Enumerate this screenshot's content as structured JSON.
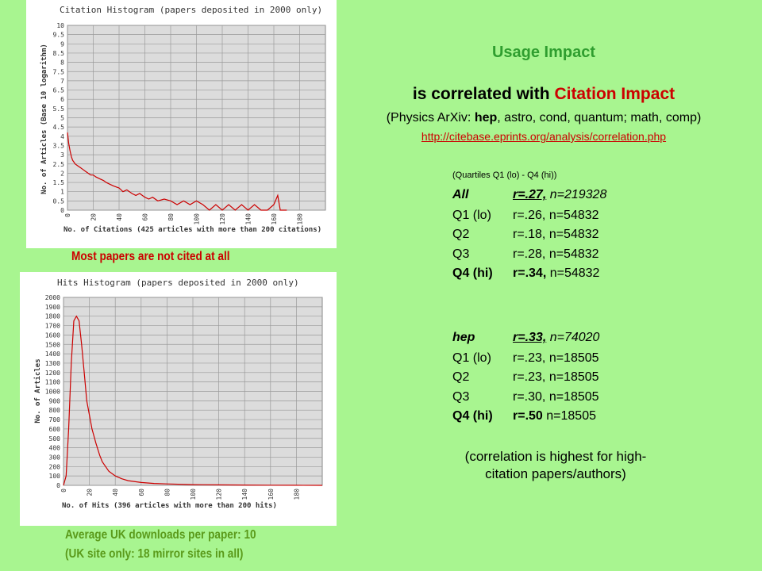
{
  "chart_data": [
    {
      "type": "line",
      "title": "Citation Histogram (papers deposited in 2000 only)",
      "x_label": "No. of Citations (425 articles with more than 200 citations)",
      "y_label": "No. of Articles (Base 10 logarithm)",
      "x": [
        0,
        1,
        2,
        3,
        4,
        5,
        6,
        8,
        10,
        12,
        14,
        16,
        18,
        20,
        22,
        25,
        28,
        30,
        33,
        36,
        40,
        43,
        46,
        50,
        53,
        56,
        60,
        63,
        66,
        70,
        75,
        80,
        85,
        90,
        95,
        100,
        105,
        110,
        115,
        120,
        125,
        130,
        135,
        140,
        145,
        150,
        155,
        160,
        163,
        165,
        170
      ],
      "values": [
        4.2,
        3.6,
        3.2,
        2.9,
        2.7,
        2.6,
        2.5,
        2.4,
        2.3,
        2.2,
        2.1,
        2.0,
        1.9,
        1.9,
        1.8,
        1.7,
        1.6,
        1.5,
        1.4,
        1.3,
        1.2,
        1.0,
        1.1,
        0.9,
        0.8,
        0.9,
        0.7,
        0.6,
        0.7,
        0.5,
        0.6,
        0.5,
        0.3,
        0.5,
        0.3,
        0.5,
        0.3,
        0,
        0.3,
        0,
        0.3,
        0,
        0.3,
        0,
        0.3,
        0,
        0,
        0.3,
        0.8,
        0,
        0
      ],
      "color": "#cc0000",
      "xlim": [
        0,
        200
      ],
      "xticks": [
        0,
        20,
        40,
        60,
        80,
        100,
        120,
        140,
        160,
        180
      ],
      "ylim": [
        0,
        10
      ],
      "yticks": [
        0,
        0.5,
        1,
        1.5,
        2,
        2.5,
        3,
        3.5,
        4,
        4.5,
        5,
        5.5,
        6,
        6.5,
        7,
        7.5,
        8,
        8.5,
        9,
        9.5,
        10
      ],
      "grid": true
    },
    {
      "type": "line",
      "title": "Hits Histogram (papers deposited in 2000 only)",
      "x_label": "No. of Hits (396 articles with more than 200 hits)",
      "y_label": "No. of Articles",
      "x": [
        0,
        2,
        4,
        6,
        8,
        10,
        12,
        14,
        16,
        18,
        20,
        22,
        25,
        28,
        30,
        35,
        40,
        45,
        50,
        60,
        70,
        80,
        100,
        120,
        140,
        160,
        180,
        200
      ],
      "values": [
        0,
        100,
        600,
        1300,
        1750,
        1800,
        1750,
        1500,
        1200,
        900,
        750,
        600,
        450,
        320,
        250,
        150,
        100,
        70,
        50,
        30,
        20,
        15,
        8,
        5,
        3,
        2,
        1,
        0
      ],
      "color": "#cc0000",
      "xlim": [
        0,
        200
      ],
      "xticks": [
        0,
        20,
        40,
        60,
        80,
        100,
        120,
        140,
        160,
        180
      ],
      "ylim": [
        0,
        2000
      ],
      "yticks": [
        0,
        100,
        200,
        300,
        400,
        500,
        600,
        700,
        800,
        900,
        1000,
        1100,
        1200,
        1300,
        1400,
        1500,
        1600,
        1700,
        1800,
        1900,
        2000
      ],
      "grid": true
    }
  ],
  "captions": {
    "citations": "Most papers are not cited at all",
    "hits": [
      "Average UK downloads per paper: 10",
      "(UK site only: 18 mirror sites in all)"
    ]
  },
  "heading": {
    "title": "Usage Impact",
    "subtitle_prefix": "is correlated with",
    "subtitle_highlight": "Citation Impact"
  },
  "source": {
    "open": "(Physics ArXiv:",
    "bold": "hep",
    "rest": ", astro, cond, quantum; math, comp)",
    "url": "http://citebase.eprints.org/analysis/correlation.php"
  },
  "quartiles_note": "(Quartiles Q1 (lo) - Q4 (hi))",
  "groups": [
    {
      "label": "All",
      "r": "r=.27,",
      "n": "n=219328",
      "rows": [
        {
          "label": "Q1 (lo)",
          "r": "r=.26,",
          "n": "n=54832"
        },
        {
          "label": "Q2",
          "r": "r=.18,",
          "n": "n=54832"
        },
        {
          "label": "Q3",
          "r": "r=.28,",
          "n": "n=54832"
        },
        {
          "label": "Q4 (hi)",
          "r": "r=.34,",
          "n": "n=54832"
        }
      ]
    },
    {
      "label": "hep",
      "r": "r=.33,",
      "n": "n=74020",
      "rows": [
        {
          "label": "Q1 (lo)",
          "r": "r=.23,",
          "n": "n=18505"
        },
        {
          "label": "Q2",
          "r": "r=.23,",
          "n": "n=18505"
        },
        {
          "label": "Q3",
          "r": "r=.30,",
          "n": "n=18505"
        },
        {
          "label": "Q4 (hi)",
          "r": "r=.50",
          "n": "n=18505"
        }
      ]
    }
  ],
  "conclusion": [
    "(correlation is highest for high-",
    "citation papers/authors)"
  ]
}
